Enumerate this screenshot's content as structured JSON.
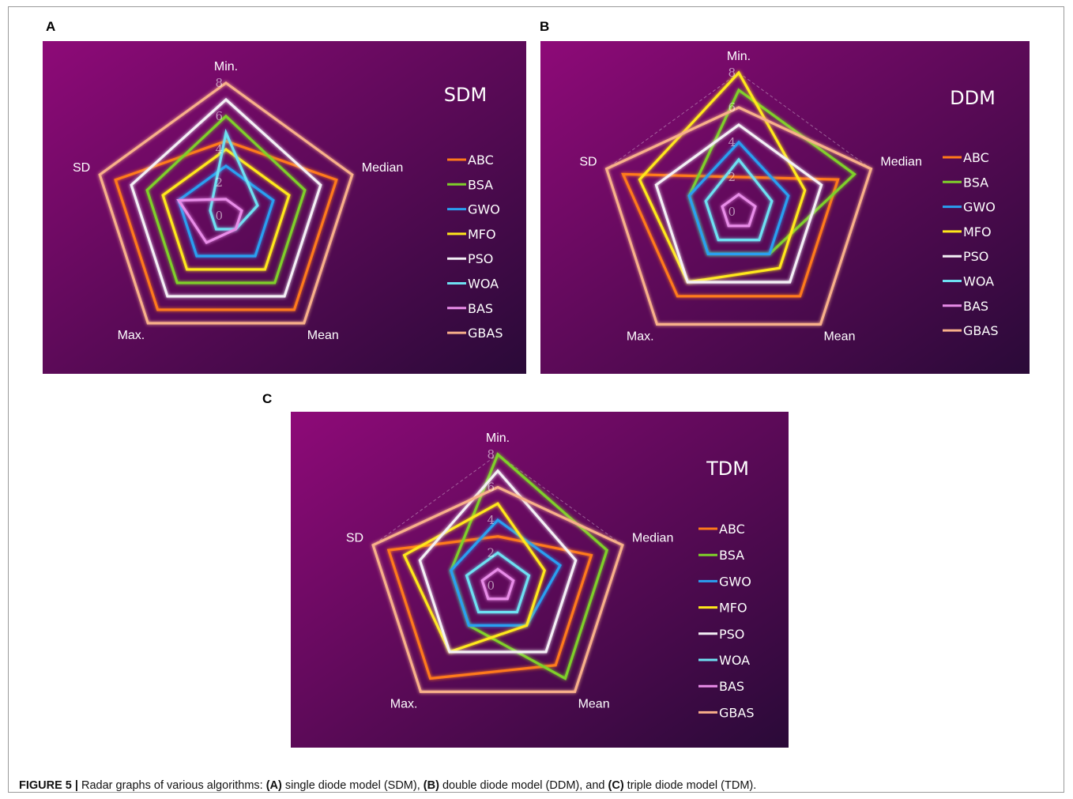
{
  "caption": {
    "figure_label": "FIGURE 5 |",
    "text_1": " Radar graphs of various algorithms: ",
    "a": "(A)",
    "text_2": " single diode model (SDM), ",
    "b": "(B)",
    "text_3": " double diode model (DDM), and ",
    "c": "(C)",
    "text_4": " triple diode model (TDM)."
  },
  "colors": {
    "background_start": "#8e0a78",
    "background_end": "#2a0a38",
    "ABC": "#ff7a1a",
    "BSA": "#7fd02a",
    "GWO": "#2a9ff0",
    "MFO": "#ffe81a",
    "PSO": "#f4f0f6",
    "WOA": "#6ee0f2",
    "BAS": "#e88ce8",
    "GBAS": "#f8b08a",
    "grid": "rgba(255,255,255,0.35)"
  },
  "chart_data": [
    {
      "panel": "A",
      "type": "radar",
      "title": "SDM",
      "axes": [
        "Min.",
        "Median",
        "Mean",
        "Max.",
        "SD"
      ],
      "rlim": [
        0,
        8
      ],
      "ticks": [
        "0",
        "2",
        "4",
        "6",
        "8"
      ],
      "legend_position": "right",
      "series": [
        {
          "name": "ABC",
          "values": [
            4.5,
            7.0,
            7.0,
            7.0,
            7.0
          ]
        },
        {
          "name": "BSA",
          "values": [
            6.0,
            5.0,
            5.0,
            5.0,
            5.0
          ]
        },
        {
          "name": "GWO",
          "values": [
            3.0,
            3.0,
            3.0,
            3.0,
            3.0
          ]
        },
        {
          "name": "MFO",
          "values": [
            4.0,
            4.0,
            4.0,
            4.0,
            4.0
          ]
        },
        {
          "name": "PSO",
          "values": [
            7.0,
            6.0,
            6.0,
            6.0,
            6.0
          ]
        },
        {
          "name": "WOA",
          "values": [
            5.0,
            2.0,
            1.0,
            1.0,
            1.0
          ]
        },
        {
          "name": "BAS",
          "values": [
            1.0,
            1.0,
            1.0,
            2.0,
            3.0
          ]
        },
        {
          "name": "GBAS",
          "values": [
            8.0,
            8.0,
            8.0,
            8.0,
            8.0
          ]
        }
      ]
    },
    {
      "panel": "B",
      "type": "radar",
      "title": "DDM",
      "axes": [
        "Min.",
        "Median",
        "Mean",
        "Max.",
        "SD"
      ],
      "rlim": [
        0,
        8
      ],
      "ticks": [
        "0",
        "2",
        "4",
        "6",
        "8"
      ],
      "legend_position": "right",
      "series": [
        {
          "name": "ABC",
          "values": [
            2.0,
            6.0,
            6.0,
            6.0,
            7.0
          ]
        },
        {
          "name": "BSA",
          "values": [
            7.0,
            7.0,
            3.0,
            3.0,
            3.0
          ]
        },
        {
          "name": "GWO",
          "values": [
            4.0,
            3.0,
            3.0,
            3.0,
            3.0
          ]
        },
        {
          "name": "MFO",
          "values": [
            8.0,
            4.0,
            4.0,
            5.0,
            6.0
          ]
        },
        {
          "name": "PSO",
          "values": [
            5.0,
            5.0,
            5.0,
            5.0,
            5.0
          ]
        },
        {
          "name": "WOA",
          "values": [
            3.0,
            2.0,
            2.0,
            2.0,
            2.0
          ]
        },
        {
          "name": "BAS",
          "values": [
            1.0,
            1.0,
            1.0,
            1.0,
            1.0
          ]
        },
        {
          "name": "GBAS",
          "values": [
            6.0,
            8.0,
            8.0,
            8.0,
            8.0
          ]
        }
      ]
    },
    {
      "panel": "C",
      "type": "radar",
      "title": "TDM",
      "axes": [
        "Min.",
        "Median",
        "Mean",
        "Max.",
        "SD"
      ],
      "rlim": [
        0,
        8
      ],
      "ticks": [
        "0",
        "2",
        "4",
        "6",
        "8"
      ],
      "legend_position": "right",
      "series": [
        {
          "name": "ABC",
          "values": [
            3.0,
            6.0,
            6.0,
            7.0,
            7.0
          ]
        },
        {
          "name": "BSA",
          "values": [
            8.0,
            7.0,
            7.0,
            3.0,
            3.0
          ]
        },
        {
          "name": "GWO",
          "values": [
            4.0,
            4.0,
            3.0,
            3.0,
            3.0
          ]
        },
        {
          "name": "MFO",
          "values": [
            5.0,
            3.0,
            3.0,
            5.0,
            6.0
          ]
        },
        {
          "name": "PSO",
          "values": [
            7.0,
            5.0,
            5.0,
            5.0,
            5.0
          ]
        },
        {
          "name": "WOA",
          "values": [
            2.0,
            2.0,
            2.0,
            2.0,
            2.0
          ]
        },
        {
          "name": "BAS",
          "values": [
            1.0,
            1.0,
            1.0,
            1.0,
            1.0
          ]
        },
        {
          "name": "GBAS",
          "values": [
            6.0,
            8.0,
            8.0,
            8.0,
            8.0
          ]
        }
      ]
    }
  ]
}
